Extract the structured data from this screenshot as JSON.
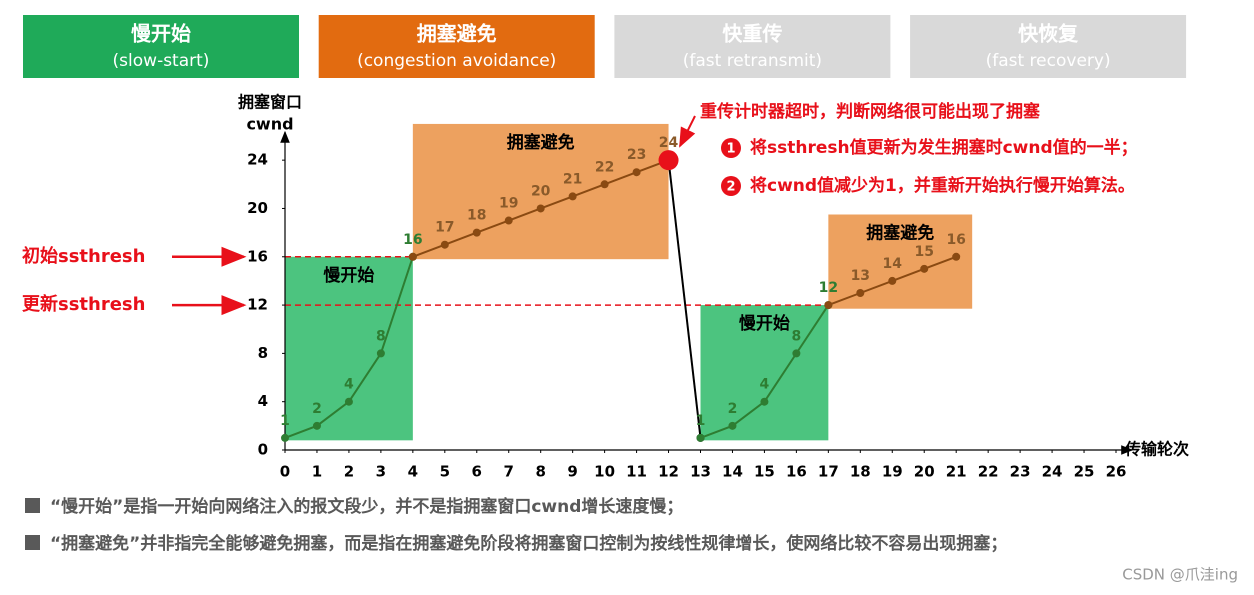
{
  "chart_data": {
    "type": "line",
    "phases": [
      {
        "title": "慢开始",
        "subtitle": "(slow-start)",
        "color": "#1faa59",
        "active": true
      },
      {
        "title": "拥塞避免",
        "subtitle": "(congestion avoidance)",
        "color": "#e26b10",
        "active": true
      },
      {
        "title": "快重传",
        "subtitle": "(fast retransmit)",
        "color": "#d9d9d9",
        "active": false
      },
      {
        "title": "快恢复",
        "subtitle": "(fast recovery)",
        "color": "#d9d9d9",
        "active": false
      }
    ],
    "y_label": [
      "拥塞窗口",
      "cwnd"
    ],
    "x_label": "传输轮次",
    "xlim": [
      0,
      26
    ],
    "ylim": [
      0,
      26
    ],
    "xticks": [
      0,
      1,
      2,
      3,
      4,
      5,
      6,
      7,
      8,
      9,
      10,
      11,
      12,
      13,
      14,
      15,
      16,
      17,
      18,
      19,
      20,
      21,
      22,
      23,
      24,
      25,
      26
    ],
    "yticks": [
      0,
      4,
      8,
      12,
      16,
      20,
      24
    ],
    "grid": false,
    "regions": [
      {
        "label": "慢开始",
        "x0": 0,
        "x1": 4,
        "y0": 0.8,
        "y1": 16,
        "color": "#4cc47f"
      },
      {
        "label": "拥塞避免",
        "x0": 4,
        "x1": 12,
        "y0": 15.8,
        "y1": 27,
        "color": "#eda15f"
      },
      {
        "label": "慢开始",
        "x0": 13,
        "x1": 17,
        "y0": 0.8,
        "y1": 12,
        "color": "#4cc47f"
      },
      {
        "label": "拥塞避免",
        "x0": 17,
        "x1": 21.5,
        "y0": 11.7,
        "y1": 19.5,
        "color": "#eda15f"
      }
    ],
    "thresholds": [
      {
        "label": "初始ssthresh",
        "value": 16,
        "x_end": 4
      },
      {
        "label": "更新ssthresh",
        "value": 12,
        "x_end": 17
      }
    ],
    "series": [
      {
        "color": "#2e7d32",
        "label_color": "#2e7d32",
        "x": [
          0,
          1,
          2,
          3,
          4
        ],
        "values": [
          1,
          2,
          4,
          8,
          16
        ]
      },
      {
        "color": "#8a4a12",
        "label_color": "#8a5a2a",
        "x": [
          4,
          5,
          6,
          7,
          8,
          9,
          10,
          11,
          12
        ],
        "values": [
          16,
          17,
          18,
          19,
          20,
          21,
          22,
          23,
          24
        ]
      },
      {
        "color": "#000000",
        "x": [
          12,
          13
        ],
        "values": [
          24,
          1
        ]
      },
      {
        "color": "#2e7d32",
        "label_color": "#2e7d32",
        "x": [
          13,
          14,
          15,
          16,
          17
        ],
        "values": [
          1,
          2,
          4,
          8,
          12
        ]
      },
      {
        "color": "#8a4a12",
        "label_color": "#8a5a2a",
        "x": [
          17,
          18,
          19,
          20,
          21
        ],
        "values": [
          12,
          13,
          14,
          15,
          16
        ]
      }
    ],
    "highlight": {
      "x": 12,
      "value": 24,
      "color": "#e8101a"
    },
    "callout": {
      "title": "重传计时器超时，判断网络很可能出现了拥塞",
      "items": [
        {
          "number": 1,
          "text": "将ssthresh值更新为发生拥塞时cwnd值的一半；"
        },
        {
          "number": 2,
          "text": "将cwnd值减少为1，并重新开始执行慢开始算法。"
        }
      ]
    },
    "footnotes": [
      "“慢开始”是指一开始向网络注入的报文段少，并不是指拥塞窗口cwnd增长速度慢；",
      "“拥塞避免”并非指完全能够避免拥塞，而是指在拥塞避免阶段将拥塞窗口控制为按线性规律增长，使网络比较不容易出现拥塞；"
    ],
    "watermark": "CSDN @爪洼ing"
  }
}
